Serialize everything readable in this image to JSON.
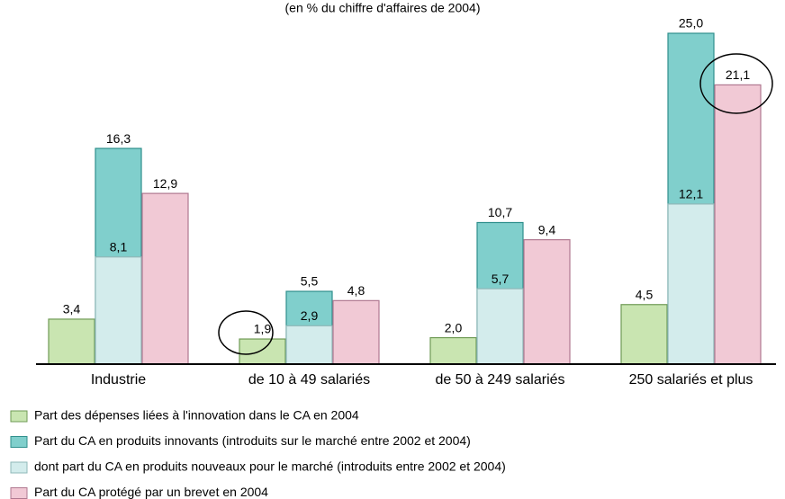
{
  "chart_data": {
    "type": "bar",
    "subtitle": "(en % du chiffre d'affaires de 2004)",
    "categories": [
      "Industrie",
      "de 10 à 49 salariés",
      "de 50 à 249 salariés",
      "250 salariés et plus"
    ],
    "ylim": [
      0,
      25
    ],
    "series": [
      {
        "name": "Part des dépenses liées à l'innovation dans le CA en 2004",
        "color": "#c9e5b1",
        "values": [
          3.4,
          1.9,
          2.0,
          4.5
        ],
        "value_labels": [
          "3,4",
          "1,9",
          "2,0",
          "4,5"
        ]
      },
      {
        "name": "Part du CA en produits innovants (introduits sur le marché entre 2002 et 2004)",
        "color": "#80cfcc",
        "values": [
          16.3,
          5.5,
          10.7,
          25.0
        ],
        "value_labels": [
          "16,3",
          "5,5",
          "10,7",
          "25,0"
        ]
      },
      {
        "name": "dont part du CA en produits nouveaux pour le marché (introduits entre 2002 et 2004)",
        "color": "#d3ecec",
        "values": [
          8.1,
          2.9,
          5.7,
          12.1
        ],
        "value_labels": [
          "8,1",
          "2,9",
          "5,7",
          "12,1"
        ]
      },
      {
        "name": "Part du CA protégé par un brevet en 2004",
        "color": "#f1c9d5",
        "values": [
          12.9,
          4.8,
          9.4,
          21.1
        ],
        "value_labels": [
          "12,9",
          "4,8",
          "9,4",
          "21,1"
        ]
      }
    ]
  }
}
